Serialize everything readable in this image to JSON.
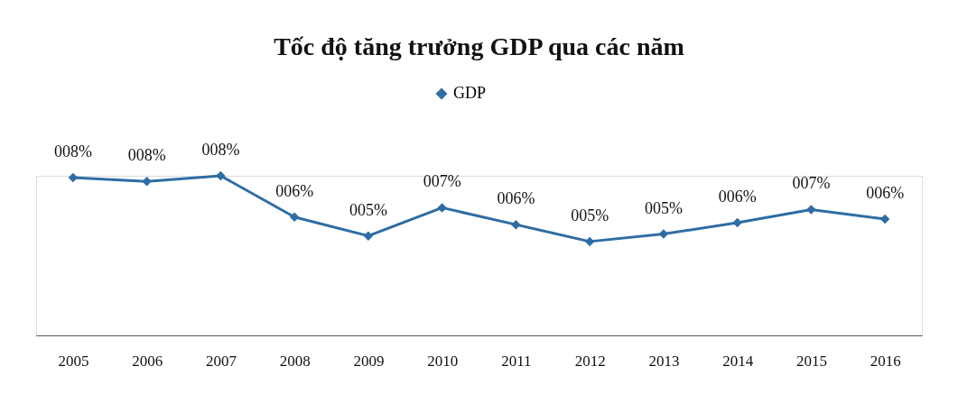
{
  "chart_data": {
    "type": "line",
    "title": "Tốc độ tăng trưởng GDP qua các năm",
    "categories": [
      "2005",
      "2006",
      "2007",
      "2008",
      "2009",
      "2010",
      "2011",
      "2012",
      "2013",
      "2014",
      "2015",
      "2016"
    ],
    "series": [
      {
        "name": "GDP",
        "color": "#2e6da4",
        "values": [
          8.4,
          8.2,
          8.5,
          6.3,
          5.3,
          6.8,
          5.9,
          5.0,
          5.4,
          6.0,
          6.7,
          6.2
        ],
        "value_labels": [
          "008%",
          "008%",
          "008%",
          "006%",
          "005%",
          "007%",
          "006%",
          "005%",
          "005%",
          "006%",
          "007%",
          "006%"
        ]
      }
    ],
    "ylim": [
      0,
      8.5
    ],
    "tick_labels": "x",
    "marker": "diamond",
    "line_style": "solid",
    "legend": "top",
    "grid": false
  }
}
